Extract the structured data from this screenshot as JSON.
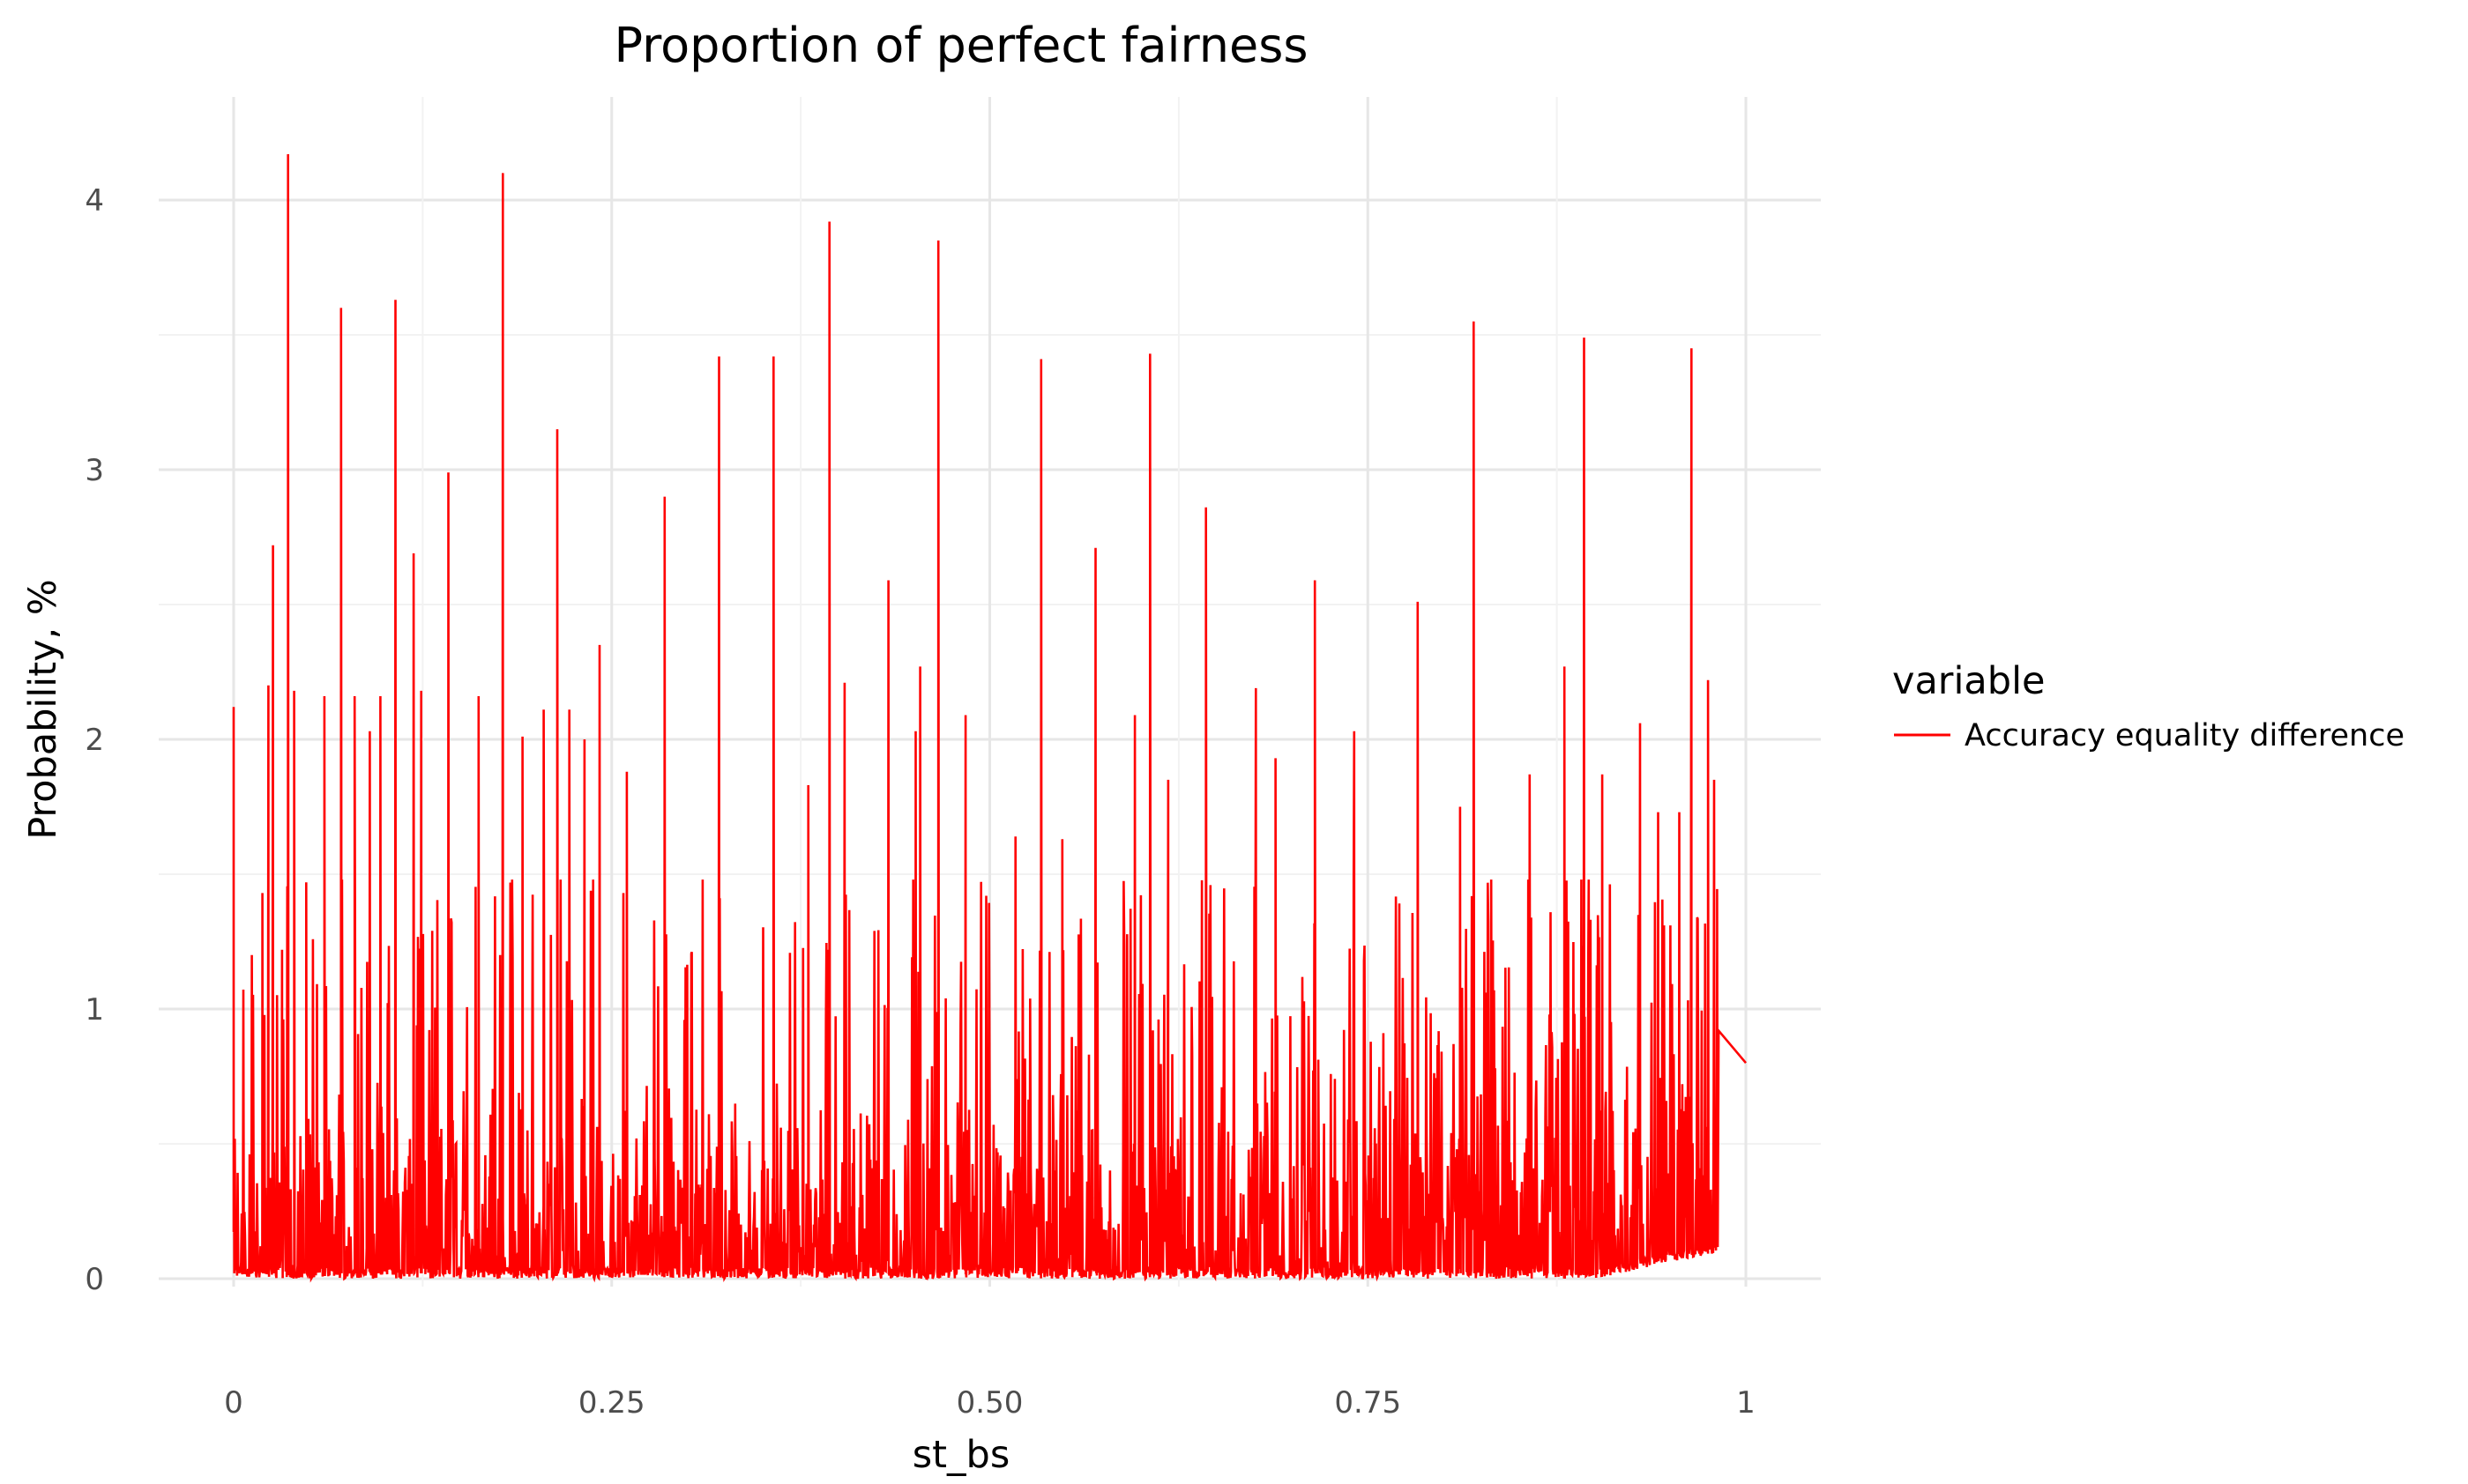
{
  "chart_data": {
    "type": "line",
    "title": "Proportion of perfect fairness",
    "xlabel": "st_bs",
    "ylabel": "Probability, %",
    "xlim": [
      0,
      1
    ],
    "ylim": [
      0,
      4.2
    ],
    "x_ticks": [
      0,
      0.25,
      0.5,
      0.75,
      1
    ],
    "x_tick_labels": [
      "0",
      "0.25",
      "0.50",
      "0.75",
      "1"
    ],
    "y_ticks": [
      0,
      1,
      2,
      3,
      4
    ],
    "y_tick_labels": [
      "0",
      "1",
      "2",
      "3",
      "4"
    ],
    "grid": true,
    "legend": {
      "title": "variable",
      "position": "right"
    },
    "series": [
      {
        "name": "Accuracy equality difference",
        "color": "#ff0000",
        "peaks": [
          [
            0.0,
            2.12
          ],
          [
            0.012,
            1.2
          ],
          [
            0.019,
            1.43
          ],
          [
            0.023,
            2.2
          ],
          [
            0.026,
            2.72
          ],
          [
            0.032,
            1.22
          ],
          [
            0.036,
            4.17
          ],
          [
            0.04,
            2.18
          ],
          [
            0.048,
            1.47
          ],
          [
            0.06,
            2.16
          ],
          [
            0.071,
            3.6
          ],
          [
            0.08,
            2.16
          ],
          [
            0.09,
            2.03
          ],
          [
            0.097,
            2.16
          ],
          [
            0.107,
            3.63
          ],
          [
            0.119,
            2.69
          ],
          [
            0.124,
            2.18
          ],
          [
            0.142,
            2.99
          ],
          [
            0.162,
            2.16
          ],
          [
            0.178,
            4.1
          ],
          [
            0.191,
            2.01
          ],
          [
            0.205,
            2.11
          ],
          [
            0.214,
            3.15
          ],
          [
            0.222,
            2.11
          ],
          [
            0.232,
            2.0
          ],
          [
            0.242,
            2.35
          ],
          [
            0.26,
            1.88
          ],
          [
            0.285,
            2.9
          ],
          [
            0.321,
            3.42
          ],
          [
            0.357,
            3.42
          ],
          [
            0.38,
            1.83
          ],
          [
            0.394,
            3.92
          ],
          [
            0.404,
            2.21
          ],
          [
            0.433,
            2.59
          ],
          [
            0.451,
            2.03
          ],
          [
            0.454,
            2.27
          ],
          [
            0.466,
            3.85
          ],
          [
            0.484,
            2.09
          ],
          [
            0.517,
            1.64
          ],
          [
            0.534,
            3.41
          ],
          [
            0.548,
            1.63
          ],
          [
            0.57,
            2.71
          ],
          [
            0.596,
            2.09
          ],
          [
            0.606,
            3.43
          ],
          [
            0.618,
            1.85
          ],
          [
            0.643,
            2.86
          ],
          [
            0.676,
            2.19
          ],
          [
            0.689,
            1.93
          ],
          [
            0.715,
            2.59
          ],
          [
            0.741,
            2.03
          ],
          [
            0.783,
            2.51
          ],
          [
            0.811,
            1.75
          ],
          [
            0.82,
            3.55
          ],
          [
            0.857,
            1.87
          ],
          [
            0.88,
            2.27
          ],
          [
            0.893,
            3.49
          ],
          [
            0.905,
            1.87
          ],
          [
            0.93,
            2.06
          ],
          [
            0.942,
            1.73
          ],
          [
            0.956,
            1.73
          ],
          [
            0.964,
            3.45
          ],
          [
            0.975,
            2.22
          ],
          [
            0.979,
            1.85
          ],
          [
            0.981,
            1.23
          ]
        ],
        "tail": [
          [
            0.982,
            0.92
          ],
          [
            1.0,
            0.8
          ]
        ]
      }
    ]
  }
}
